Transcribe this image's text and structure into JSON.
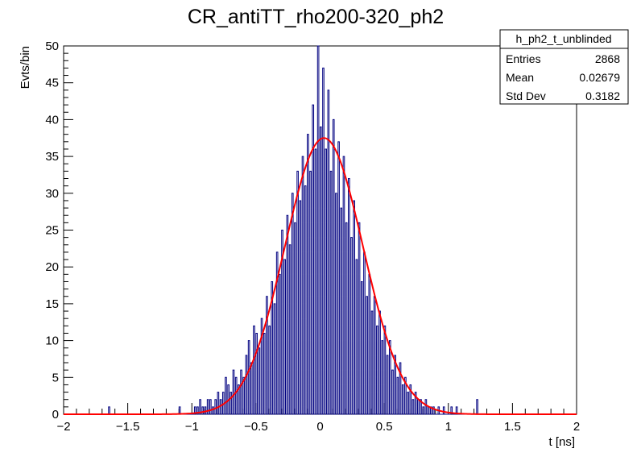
{
  "chart_data": {
    "type": "histogram",
    "title": "CR_antiTT_rho200-320_ph2",
    "xlabel": "t [ns]",
    "ylabel": "Evts/bin",
    "xlim": [
      -2,
      2
    ],
    "ylim": [
      0,
      50
    ],
    "x_ticks": [
      "−2",
      "−1.5",
      "−1",
      "−0.5",
      "0",
      "0.5",
      "1",
      "1.5",
      "2"
    ],
    "x_tick_values": [
      -2,
      -1.5,
      -1,
      -0.5,
      0,
      0.5,
      1,
      1.5,
      2
    ],
    "y_ticks": [
      "0",
      "5",
      "10",
      "15",
      "20",
      "25",
      "30",
      "35",
      "40",
      "45",
      "50"
    ],
    "y_tick_values": [
      0,
      5,
      10,
      15,
      20,
      25,
      30,
      35,
      40,
      45,
      50
    ],
    "bin_width": 0.01,
    "series": [
      {
        "kind": "step",
        "color": "#000080",
        "x_start": -2.0,
        "values": [
          0,
          0,
          0,
          0,
          0,
          0,
          0,
          0,
          0,
          0,
          0,
          0,
          0,
          0,
          0,
          0,
          0,
          0,
          0,
          0,
          0,
          0,
          0,
          0,
          0,
          0,
          0,
          0,
          0,
          0,
          0,
          0,
          0,
          0,
          0,
          0,
          0,
          0,
          0,
          0,
          0,
          0,
          0,
          0,
          0,
          0,
          0,
          0,
          0,
          0,
          0,
          0,
          0,
          0,
          0,
          0,
          0,
          0,
          0,
          0,
          0,
          0,
          0,
          0,
          0,
          0,
          0,
          0,
          0,
          0,
          0,
          0,
          0,
          0,
          0,
          0,
          0,
          0,
          0,
          0,
          0,
          0,
          0,
          0,
          0,
          0,
          0,
          0,
          0,
          0,
          0,
          0,
          0,
          0,
          0,
          0,
          0,
          0,
          0,
          0,
          0,
          0,
          0,
          0,
          0,
          0,
          0,
          0,
          0,
          0,
          0,
          0,
          0,
          0,
          0,
          0,
          0,
          0,
          0,
          0,
          0,
          0,
          0,
          0,
          0,
          0,
          0,
          0,
          0,
          0,
          0,
          0,
          0,
          0,
          0,
          0,
          0,
          0,
          0,
          0,
          0,
          0,
          0,
          0,
          0,
          0,
          0,
          0,
          0,
          0,
          0,
          0,
          0,
          0,
          0,
          0,
          0,
          0,
          0,
          0,
          0,
          0,
          0,
          0,
          0,
          0,
          0,
          0,
          0,
          0,
          0,
          0,
          0,
          0,
          0,
          0,
          0,
          0,
          0,
          0,
          0,
          0,
          0,
          0,
          0,
          0,
          0,
          0,
          0,
          0,
          0,
          0,
          0,
          0,
          0,
          0,
          0,
          0,
          0,
          0,
          0,
          0,
          0,
          0,
          0,
          0,
          0,
          0,
          0,
          0,
          0,
          0,
          0,
          0,
          0,
          0,
          0,
          0,
          0,
          0,
          0,
          0,
          0,
          0,
          0,
          0,
          0,
          0,
          0,
          0,
          0,
          0,
          0,
          0,
          0,
          0,
          0,
          0,
          0,
          0,
          0,
          0,
          0,
          0,
          0,
          0,
          0,
          0,
          0,
          0,
          0,
          0,
          0,
          0,
          0,
          0,
          0,
          0,
          0,
          0,
          0,
          0,
          0,
          0,
          0,
          0,
          0,
          0,
          0,
          0,
          0,
          0,
          0,
          0,
          0,
          0,
          0,
          0,
          0,
          0,
          0,
          0,
          0,
          0,
          0,
          0,
          0,
          0,
          0,
          0,
          0,
          0,
          0,
          0,
          0,
          0,
          0,
          0,
          0,
          0,
          0,
          0,
          0,
          0,
          0,
          0,
          0,
          0,
          0,
          0,
          0,
          0,
          0,
          0,
          0,
          0,
          0,
          0,
          0,
          0,
          0,
          0,
          0,
          0,
          0,
          0,
          0,
          0,
          0,
          0,
          0,
          0,
          0,
          0,
          0,
          0,
          0,
          0,
          0,
          0,
          0,
          0,
          0,
          0,
          0,
          0,
          0,
          0,
          0,
          0,
          0,
          0,
          0,
          0,
          0,
          0,
          0,
          0,
          0,
          0,
          0,
          0,
          0,
          0,
          0,
          0,
          0,
          0,
          0,
          0,
          0,
          0,
          0,
          0,
          0,
          0,
          0,
          0,
          0,
          0,
          0,
          0,
          0,
          0,
          0,
          0,
          0,
          0,
          0,
          0,
          0,
          0,
          0,
          0,
          0,
          0,
          0,
          0,
          0,
          0
        ],
        "overrides": [
          [
            -1.65,
            1
          ],
          [
            -1.1,
            1
          ],
          [
            -0.98,
            1
          ],
          [
            -0.96,
            1
          ],
          [
            -0.94,
            2
          ],
          [
            -0.92,
            1
          ],
          [
            -0.9,
            1
          ],
          [
            -0.88,
            2
          ],
          [
            -0.86,
            2
          ],
          [
            -0.84,
            1
          ],
          [
            -0.82,
            2
          ],
          [
            -0.8,
            3
          ],
          [
            -0.78,
            2
          ],
          [
            -0.76,
            3
          ],
          [
            -0.74,
            5
          ],
          [
            -0.72,
            4
          ],
          [
            -0.7,
            3
          ],
          [
            -0.68,
            6
          ],
          [
            -0.66,
            5
          ],
          [
            -0.64,
            4
          ],
          [
            -0.62,
            6
          ],
          [
            -0.6,
            5
          ],
          [
            -0.58,
            8
          ],
          [
            -0.56,
            10
          ],
          [
            -0.54,
            7
          ],
          [
            -0.52,
            12
          ],
          [
            -0.5,
            11
          ],
          [
            -0.48,
            9
          ],
          [
            -0.46,
            13
          ],
          [
            -0.44,
            11
          ],
          [
            -0.42,
            16
          ],
          [
            -0.4,
            12
          ],
          [
            -0.38,
            18
          ],
          [
            -0.36,
            15
          ],
          [
            -0.34,
            22
          ],
          [
            -0.32,
            19
          ],
          [
            -0.3,
            25
          ],
          [
            -0.28,
            21
          ],
          [
            -0.26,
            27
          ],
          [
            -0.24,
            23
          ],
          [
            -0.22,
            30
          ],
          [
            -0.2,
            26
          ],
          [
            -0.18,
            33
          ],
          [
            -0.16,
            29
          ],
          [
            -0.14,
            35
          ],
          [
            -0.12,
            31
          ],
          [
            -0.1,
            38
          ],
          [
            -0.08,
            33
          ],
          [
            -0.06,
            42
          ],
          [
            -0.04,
            36
          ],
          [
            -0.02,
            50
          ],
          [
            0.0,
            39
          ],
          [
            0.02,
            47
          ],
          [
            0.04,
            36
          ],
          [
            0.06,
            44
          ],
          [
            0.08,
            33
          ],
          [
            0.1,
            40
          ],
          [
            0.12,
            30
          ],
          [
            0.14,
            37
          ],
          [
            0.16,
            28
          ],
          [
            0.18,
            35
          ],
          [
            0.2,
            26
          ],
          [
            0.22,
            32
          ],
          [
            0.24,
            24
          ],
          [
            0.26,
            29
          ],
          [
            0.28,
            21
          ],
          [
            0.3,
            26
          ],
          [
            0.32,
            18
          ],
          [
            0.34,
            22
          ],
          [
            0.36,
            16
          ],
          [
            0.38,
            19
          ],
          [
            0.4,
            14
          ],
          [
            0.42,
            16
          ],
          [
            0.44,
            12
          ],
          [
            0.46,
            14
          ],
          [
            0.48,
            10
          ],
          [
            0.5,
            12
          ],
          [
            0.52,
            8
          ],
          [
            0.54,
            10
          ],
          [
            0.56,
            6
          ],
          [
            0.58,
            8
          ],
          [
            0.6,
            5
          ],
          [
            0.62,
            7
          ],
          [
            0.64,
            4
          ],
          [
            0.66,
            5
          ],
          [
            0.68,
            3
          ],
          [
            0.7,
            4
          ],
          [
            0.72,
            2
          ],
          [
            0.74,
            3
          ],
          [
            0.76,
            2
          ],
          [
            0.78,
            2
          ],
          [
            0.8,
            1
          ],
          [
            0.82,
            2
          ],
          [
            0.84,
            1
          ],
          [
            0.86,
            1
          ],
          [
            0.88,
            1
          ],
          [
            0.92,
            1
          ],
          [
            0.96,
            1
          ],
          [
            1.02,
            1
          ],
          [
            1.06,
            1
          ],
          [
            1.22,
            2
          ]
        ]
      },
      {
        "kind": "fit",
        "color": "#ff0000",
        "function": "gaus",
        "amplitude": 37.5,
        "mean": 0.03,
        "sigma": 0.305
      }
    ],
    "stats_box": {
      "name": "h_ph2_t_unblinded",
      "rows": [
        {
          "label": "Entries",
          "value": "2868"
        },
        {
          "label": "Mean",
          "value": "0.02679"
        },
        {
          "label": "Std Dev",
          "value": "0.3182"
        }
      ]
    }
  }
}
